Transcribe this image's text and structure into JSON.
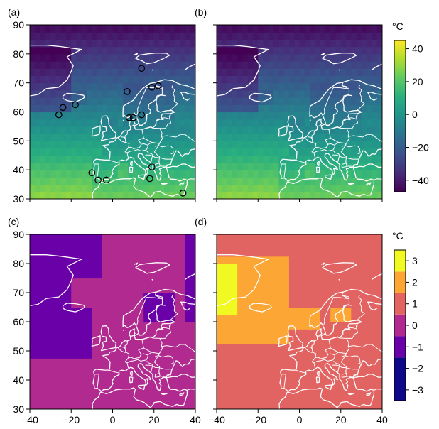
{
  "chart_data": [
    {
      "type": "heatmap",
      "panel_label": "(a)",
      "title": "",
      "xlabel": "",
      "ylabel": "",
      "xlim": [
        -40,
        40
      ],
      "ylim": [
        30,
        90
      ],
      "xticks": [
        "",
        "",
        "",
        "",
        ""
      ],
      "yticks": [
        "90",
        "80",
        "70",
        "60",
        "50",
        "40",
        "30"
      ],
      "grid": false,
      "overlay": "coastlines and country borders (white)",
      "colormap": "viridis",
      "colorbar": "colorbar-1",
      "field": "temperature",
      "station_markers": [
        {
          "lon": -26,
          "lat": 59
        },
        {
          "lon": -24,
          "lat": 61.5
        },
        {
          "lon": -18,
          "lat": 62.5
        },
        {
          "lon": 7,
          "lat": 67
        },
        {
          "lon": 14,
          "lat": 75
        },
        {
          "lon": 19,
          "lat": 68.5
        },
        {
          "lon": 22,
          "lat": 69
        },
        {
          "lon": 8,
          "lat": 58
        },
        {
          "lon": 10,
          "lat": 58
        },
        {
          "lon": 14,
          "lat": 59
        },
        {
          "lon": 19,
          "lat": 41
        },
        {
          "lon": 18,
          "lat": 37
        },
        {
          "lon": -10,
          "lat": 39
        },
        {
          "lon": -7,
          "lat": 36.5
        },
        {
          "lon": -3,
          "lat": 36.5
        },
        {
          "lon": 34,
          "lat": 32
        }
      ]
    },
    {
      "type": "heatmap",
      "panel_label": "(b)",
      "title": "",
      "xlabel": "",
      "ylabel": "",
      "xlim": [
        -40,
        40
      ],
      "ylim": [
        30,
        90
      ],
      "xticks": [
        "",
        "",
        "",
        "",
        ""
      ],
      "yticks": [
        "",
        "",
        "",
        "",
        "",
        "",
        ""
      ],
      "grid": false,
      "overlay": "coastlines and country borders (white)",
      "colormap": "viridis",
      "colorbar": "colorbar-1",
      "field": "temperature"
    },
    {
      "type": "heatmap",
      "panel_label": "(c)",
      "title": "",
      "xlabel": "",
      "ylabel": "",
      "xlim": [
        -40,
        40
      ],
      "ylim": [
        30,
        90
      ],
      "xticks": [
        "−40",
        "−20",
        "0",
        "20",
        "40"
      ],
      "yticks": [
        "90",
        "80",
        "70",
        "60",
        "50",
        "40",
        "30"
      ],
      "grid": false,
      "overlay": "coastlines and country borders (white)",
      "colormap": "plasma (discrete)",
      "colorbar": "colorbar-2",
      "field": "difference",
      "default_value": -0.5,
      "regions_value_minus_1_5": "Greenland, north-west Atlantic, Barents Sea, northern Scandinavia, Baltic"
    },
    {
      "type": "heatmap",
      "panel_label": "(d)",
      "title": "",
      "xlabel": "",
      "ylabel": "",
      "xlim": [
        -40,
        40
      ],
      "ylim": [
        30,
        90
      ],
      "xticks": [
        "−40",
        "−20",
        "0",
        "20",
        "40"
      ],
      "yticks": [
        "",
        "",
        "",
        "",
        "",
        "",
        ""
      ],
      "grid": false,
      "overlay": "coastlines and country borders (white)",
      "colormap": "plasma (discrete)",
      "colorbar": "colorbar-2",
      "field": "difference",
      "default_value": 0.5,
      "regions_value_1_5": "Greenland Sea, Norwegian Sea, North Atlantic 52–80N, Baltic",
      "regions_value_2_5": "East Greenland coast 62–80N"
    }
  ],
  "colorbars": [
    {
      "name": "colorbar-1",
      "unit": "°C",
      "range": [
        -47,
        45
      ],
      "ticks": [
        "40",
        "20",
        "0",
        "−20",
        "−40"
      ],
      "tick_values": [
        40,
        20,
        0,
        -20,
        -40
      ],
      "colors": [
        "#440154",
        "#472d7b",
        "#3b528b",
        "#2c728e",
        "#21918c",
        "#28ae80",
        "#5ec962",
        "#addc30",
        "#fde725"
      ]
    },
    {
      "name": "colorbar-2",
      "unit": "°C",
      "range": [
        -3.5,
        3.5
      ],
      "ticks": [
        "3",
        "2",
        "1",
        "0",
        "−1",
        "−2",
        "−3"
      ],
      "tick_values": [
        3,
        2,
        1,
        0,
        -1,
        -2,
        -3
      ],
      "bins": [
        {
          "from": -3.5,
          "to": -2.5,
          "color": "#0d0887"
        },
        {
          "from": -2.5,
          "to": -1.5,
          "color": "#0d0887"
        },
        {
          "from": -1.5,
          "to": -0.5,
          "color": "#6a00a8"
        },
        {
          "from": -0.5,
          "to": 0.5,
          "color": "#b12a90"
        },
        {
          "from": 0.5,
          "to": 1.5,
          "color": "#e16462"
        },
        {
          "from": 1.5,
          "to": 2.5,
          "color": "#fca636"
        },
        {
          "from": 2.5,
          "to": 3.5,
          "color": "#f0f921"
        }
      ]
    }
  ]
}
